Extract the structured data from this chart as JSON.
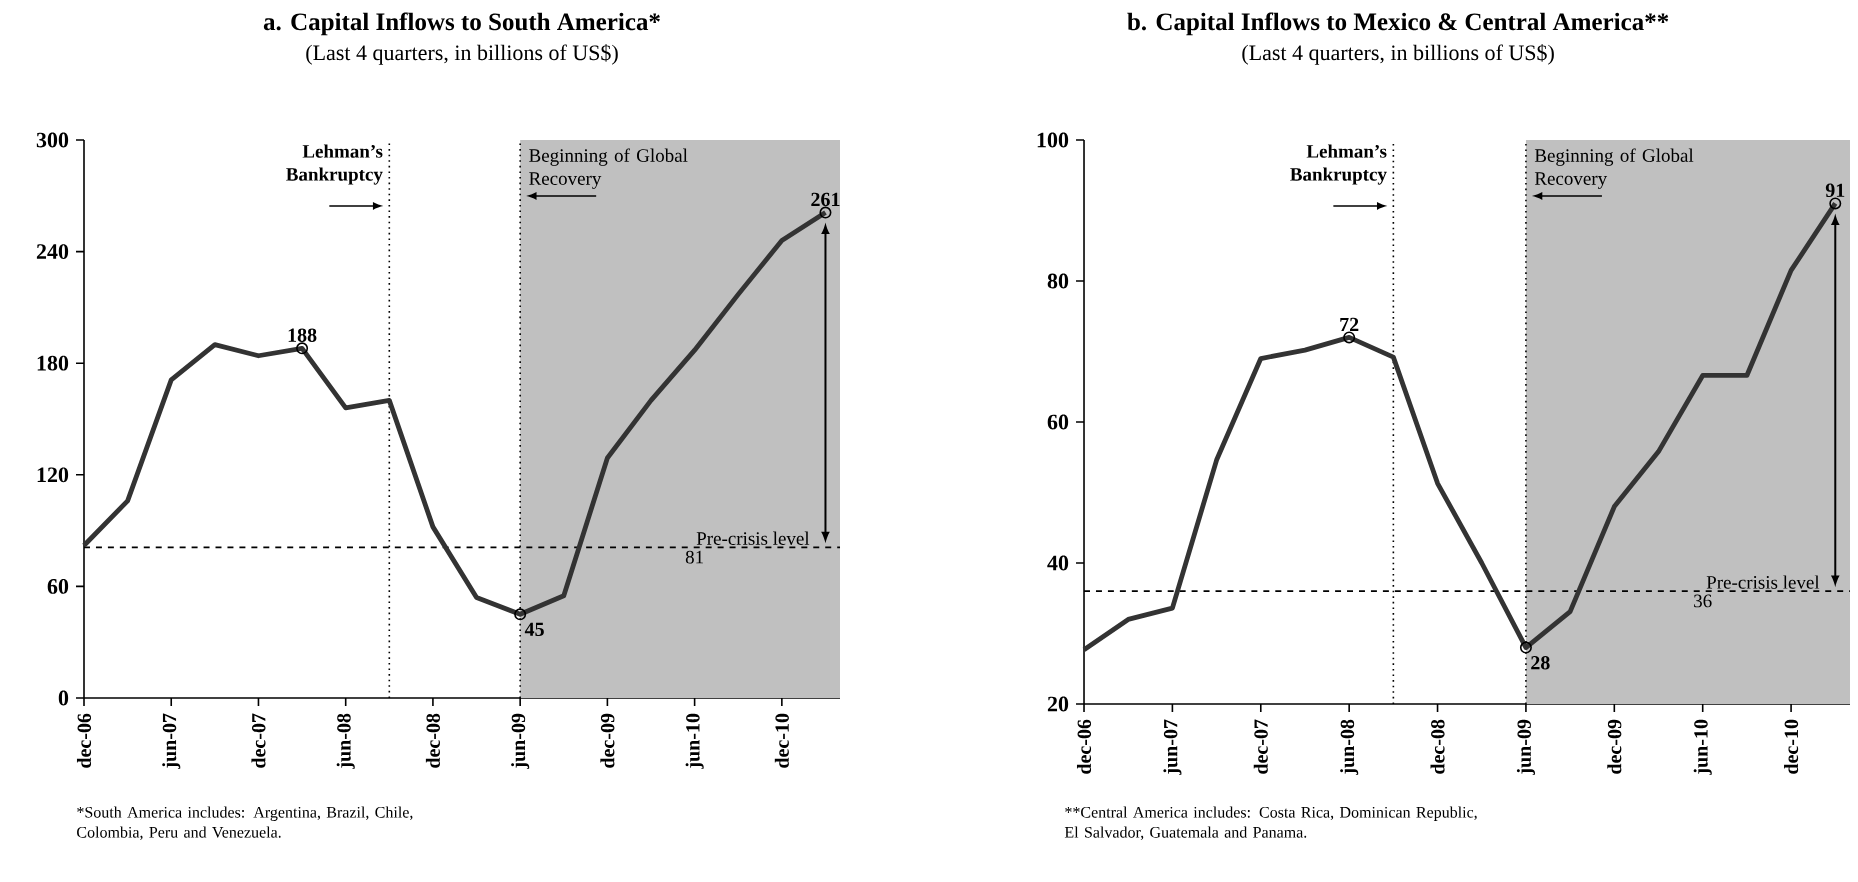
{
  "chart_data": [
    {
      "type": "line",
      "title": "a. Capital Inflows to South America*",
      "subtitle": "(Last 4 quarters, in billions of US$)",
      "x": [
        "2006-12",
        "2007-03",
        "2007-06",
        "2007-09",
        "2007-12",
        "2008-03",
        "2008-06",
        "2008-09",
        "2008-12",
        "2009-03",
        "2009-06",
        "2009-09",
        "2009-12",
        "2010-03",
        "2010-06",
        "2010-09",
        "2010-12",
        "2011-03"
      ],
      "series": [
        {
          "color": "#333333",
          "values": [
            82,
            106,
            171,
            190,
            184,
            188,
            156,
            160,
            92,
            54,
            45,
            55,
            129,
            160,
            187,
            217,
            246,
            261
          ],
          "value_labels": [
            null,
            null,
            null,
            null,
            null,
            "188",
            null,
            null,
            null,
            null,
            "45",
            null,
            null,
            null,
            null,
            null,
            null,
            "261"
          ]
        }
      ],
      "xlim": [
        "2006-12",
        "2011-04"
      ],
      "ylim": [
        0,
        300
      ],
      "xticks": [
        {
          "value": "2006-12",
          "label": "dec-06"
        },
        {
          "value": "2007-06",
          "label": "jun-07"
        },
        {
          "value": "2007-12",
          "label": "dec-07"
        },
        {
          "value": "2008-06",
          "label": "jun-08"
        },
        {
          "value": "2008-12",
          "label": "dec-08"
        },
        {
          "value": "2009-06",
          "label": "jun-09"
        },
        {
          "value": "2009-12",
          "label": "dec-09"
        },
        {
          "value": "2010-06",
          "label": "jun-10"
        },
        {
          "value": "2010-12",
          "label": "dec-10"
        }
      ],
      "yticks": [
        0,
        60,
        120,
        180,
        240,
        300
      ],
      "ref_lines": [
        {
          "axis": "x",
          "value": "2008-09",
          "label": "Lehman’s Bankruptcy",
          "color": "#000000",
          "line_style": "dotted"
        },
        {
          "axis": "x",
          "value": "2009-06",
          "label": "Beginning of Global Recovery",
          "color": "#000000",
          "line_style": "dotted"
        },
        {
          "axis": "y",
          "value": 81,
          "label": "Pre-crisis level",
          "color": "#000000",
          "line_style": "dashed"
        }
      ],
      "bands": [
        {
          "axis": "x",
          "from": "2009-06",
          "to": "2011-04",
          "color": "#c0c0c0"
        }
      ],
      "annotations": [
        {
          "text": "81",
          "x": "2010-06",
          "y": 81
        },
        "*South America includes: Argentina, Brazil, Chile, Colombia, Peru and Venezuela."
      ]
    },
    {
      "type": "line",
      "title": "b. Capital Inflows to Mexico & Central America**",
      "subtitle": "(Last 4 quarters, in billions of US$)",
      "x": [
        "2006-12",
        "2007-03",
        "2007-06",
        "2007-09",
        "2007-12",
        "2008-03",
        "2008-06",
        "2008-09",
        "2008-12",
        "2009-03",
        "2009-06",
        "2009-09",
        "2009-12",
        "2010-03",
        "2010-06",
        "2010-09",
        "2010-12",
        "2011-03"
      ],
      "series": [
        {
          "color": "#333333",
          "values": [
            27.7,
            32,
            33.6,
            54.6,
            69,
            70.2,
            72,
            69.2,
            51.3,
            40,
            28,
            33.1,
            48,
            55.8,
            66.6,
            66.6,
            81.5,
            91
          ],
          "value_labels": [
            null,
            null,
            null,
            null,
            null,
            null,
            "72",
            null,
            null,
            null,
            "28",
            null,
            null,
            null,
            null,
            null,
            null,
            "91"
          ]
        }
      ],
      "xlim": [
        "2006-12",
        "2011-04"
      ],
      "ylim": [
        20,
        100
      ],
      "xticks": [
        {
          "value": "2006-12",
          "label": "dec-06"
        },
        {
          "value": "2007-06",
          "label": "jun-07"
        },
        {
          "value": "2007-12",
          "label": "dec-07"
        },
        {
          "value": "2008-06",
          "label": "jun-08"
        },
        {
          "value": "2008-12",
          "label": "dec-08"
        },
        {
          "value": "2009-06",
          "label": "jun-09"
        },
        {
          "value": "2009-12",
          "label": "dec-09"
        },
        {
          "value": "2010-06",
          "label": "jun-10"
        },
        {
          "value": "2010-12",
          "label": "dec-10"
        }
      ],
      "yticks": [
        20,
        40,
        60,
        80,
        100
      ],
      "ref_lines": [
        {
          "axis": "x",
          "value": "2008-09",
          "label": "Lehman’s Bankruptcy",
          "color": "#000000",
          "line_style": "dotted"
        },
        {
          "axis": "x",
          "value": "2009-06",
          "label": "Beginning of Global Recovery",
          "color": "#000000",
          "line_style": "dotted"
        },
        {
          "axis": "y",
          "value": 36,
          "label": "Pre-crisis level",
          "color": "#000000",
          "line_style": "dashed"
        }
      ],
      "bands": [
        {
          "axis": "x",
          "from": "2009-06",
          "to": "2011-04",
          "color": "#c0c0c0"
        }
      ],
      "annotations": [
        {
          "text": "36",
          "x": "2010-06",
          "y": 36
        },
        "**Central America includes: Costa Rica, Dominican Republic, El Salvador, Guatemala and Panama."
      ]
    }
  ]
}
